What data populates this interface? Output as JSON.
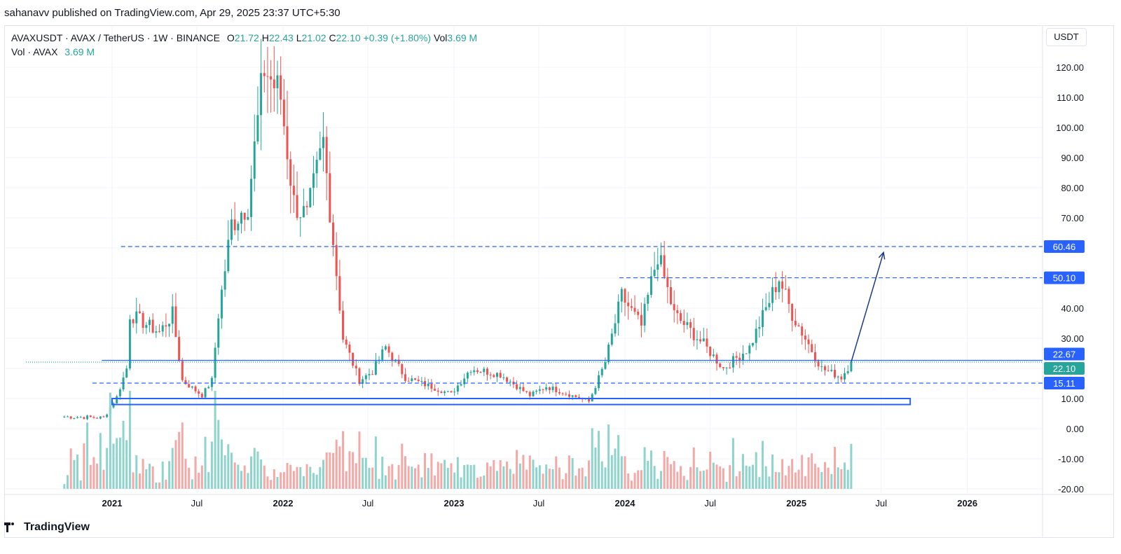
{
  "header": {
    "published": "sahanavv published on TradingView.com, Apr 29, 2025 23:37 UTC+5:30"
  },
  "legend": {
    "symbol": "AVAXUSDT · AVAX / TetherUS · 1W · BINANCE",
    "o_label": "O",
    "o": "21.72",
    "h_label": "H",
    "h": "22.43",
    "l_label": "L",
    "l": "21.02",
    "c_label": "C",
    "c": "22.10",
    "change": "+0.39 (+1.80%)",
    "vol_label": "Vol",
    "vol": "3.69 M",
    "vol_line_label": "Vol · AVAX",
    "vol_line_value": "3.69 M"
  },
  "currency": "USDT",
  "footer": {
    "brand": "TradingView"
  },
  "colors": {
    "up": "#26a69a",
    "down": "#ef5350",
    "level": "#2962ff",
    "vol_up": "#8fd4cc",
    "vol_down": "#f4a9a7"
  },
  "chart_data": {
    "type": "candlestick",
    "y_ticks": [
      "120.00",
      "110.00",
      "100.00",
      "90.00",
      "80.00",
      "70.00",
      "60.00",
      "50.00",
      "40.00",
      "30.00",
      "20.00",
      "10.00",
      "0.00",
      "-10.00",
      "-20.00"
    ],
    "ylim": [
      -20,
      130
    ],
    "x_ticks": [
      "2021",
      "Jul",
      "2022",
      "Jul",
      "2023",
      "Jul",
      "2024",
      "Jul",
      "2025",
      "Jul",
      "2026"
    ],
    "price_levels": [
      {
        "label": "60.46",
        "value": 60.46,
        "style": "dashed"
      },
      {
        "label": "50.10",
        "value": 50.1,
        "style": "dashed"
      },
      {
        "label": "22.67",
        "value": 22.67,
        "style": "solid"
      },
      {
        "label": "22.10",
        "value": 22.1,
        "style": "dotted",
        "color": "#26a69a"
      },
      {
        "label": "15.11",
        "value": 15.11,
        "style": "dashed"
      }
    ],
    "support_zone": {
      "from": "2021-01",
      "to": "2025-09",
      "low": 8.0,
      "high": 10.0
    },
    "projection_arrow": {
      "from_date": "2025-04-28",
      "from_value": 22.1,
      "to_date": "2025-07-06",
      "to_value": 58.5
    },
    "weekly_close_path": [
      {
        "date": "2020-09-21",
        "close": 4.0
      },
      {
        "date": "2020-12-14",
        "close": 3.6
      },
      {
        "date": "2021-01-11",
        "close": 10.5
      },
      {
        "date": "2021-02-01",
        "close": 20.0
      },
      {
        "date": "2021-02-08",
        "close": 38.0
      },
      {
        "date": "2021-04-12",
        "close": 32.0
      },
      {
        "date": "2021-05-10",
        "close": 38.0
      },
      {
        "date": "2021-05-31",
        "close": 16.0
      },
      {
        "date": "2021-07-12",
        "close": 11.0
      },
      {
        "date": "2021-08-02",
        "close": 16.0
      },
      {
        "date": "2021-08-16",
        "close": 38.0
      },
      {
        "date": "2021-09-13",
        "close": 68.0
      },
      {
        "date": "2021-10-18",
        "close": 75.0
      },
      {
        "date": "2021-11-22",
        "close": 120.0
      },
      {
        "date": "2021-12-27",
        "close": 110.0
      },
      {
        "date": "2022-01-24",
        "close": 75.0
      },
      {
        "date": "2022-02-21",
        "close": 70.0
      },
      {
        "date": "2022-03-28",
        "close": 95.0
      },
      {
        "date": "2022-05-09",
        "close": 30.0
      },
      {
        "date": "2022-06-13",
        "close": 16.0
      },
      {
        "date": "2022-07-11",
        "close": 19.0
      },
      {
        "date": "2022-08-08",
        "close": 27.0
      },
      {
        "date": "2022-09-19",
        "close": 17.0
      },
      {
        "date": "2022-12-26",
        "close": 11.5
      },
      {
        "date": "2023-02-06",
        "close": 20.0
      },
      {
        "date": "2023-04-10",
        "close": 18.0
      },
      {
        "date": "2023-06-12",
        "close": 11.0
      },
      {
        "date": "2023-07-17",
        "close": 14.0
      },
      {
        "date": "2023-10-16",
        "close": 9.0
      },
      {
        "date": "2023-11-20",
        "close": 22.0
      },
      {
        "date": "2023-12-25",
        "close": 44.0
      },
      {
        "date": "2024-02-05",
        "close": 34.0
      },
      {
        "date": "2024-03-11",
        "close": 58.0
      },
      {
        "date": "2024-04-15",
        "close": 38.0
      },
      {
        "date": "2024-06-17",
        "close": 28.0
      },
      {
        "date": "2024-07-29",
        "close": 20.0
      },
      {
        "date": "2024-09-23",
        "close": 27.0
      },
      {
        "date": "2024-11-25",
        "close": 50.0
      },
      {
        "date": "2024-12-23",
        "close": 38.0
      },
      {
        "date": "2025-02-24",
        "close": 20.0
      },
      {
        "date": "2025-04-07",
        "close": 17.0
      },
      {
        "date": "2025-04-28",
        "close": 22.1
      }
    ]
  }
}
